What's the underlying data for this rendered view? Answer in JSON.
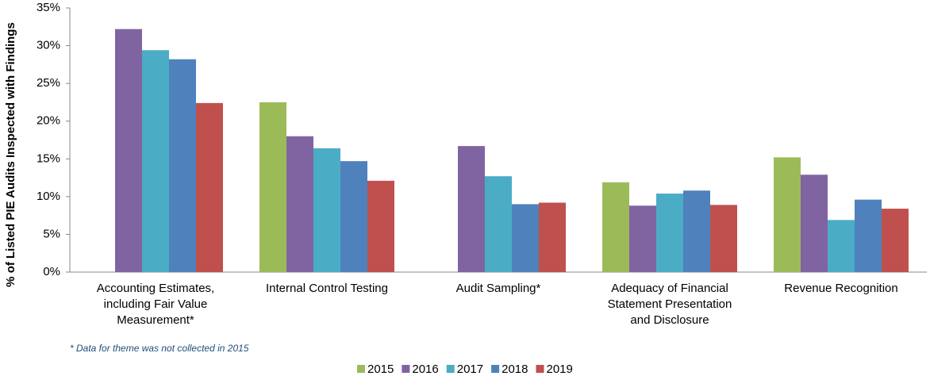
{
  "chart_data": {
    "type": "bar",
    "y_label": "% of Listed PIE Audits Inspected with Findings",
    "footnote": "* Data for theme was not collected in 2015",
    "categories": [
      "Accounting Estimates, including Fair Value Measurement*",
      "Internal Control Testing",
      "Audit Sampling*",
      "Adequacy of Financial Statement Presentation and Disclosure",
      "Revenue Recognition"
    ],
    "series": [
      {
        "name": "2015",
        "color": "#9bbb59",
        "values": [
          null,
          22.5,
          null,
          11.9,
          15.2
        ]
      },
      {
        "name": "2016",
        "color": "#8064a2",
        "values": [
          32.2,
          18.0,
          16.7,
          8.8,
          12.9
        ]
      },
      {
        "name": "2017",
        "color": "#4bacc6",
        "values": [
          29.4,
          16.4,
          12.7,
          10.4,
          6.9
        ]
      },
      {
        "name": "2018",
        "color": "#4f81bd",
        "values": [
          28.2,
          14.7,
          9.0,
          10.8,
          9.6
        ]
      },
      {
        "name": "2019",
        "color": "#c0504d",
        "values": [
          22.4,
          12.1,
          9.2,
          8.9,
          8.4
        ]
      }
    ],
    "ylim": [
      0,
      35
    ],
    "yticks": [
      {
        "value": 0,
        "label": "0%"
      },
      {
        "value": 5,
        "label": "5%"
      },
      {
        "value": 10,
        "label": "10%"
      },
      {
        "value": 15,
        "label": "15%"
      },
      {
        "value": 20,
        "label": "20%"
      },
      {
        "value": 25,
        "label": "25%"
      },
      {
        "value": 30,
        "label": "30%"
      },
      {
        "value": 35,
        "label": "35%"
      }
    ],
    "legend": "bottom"
  }
}
